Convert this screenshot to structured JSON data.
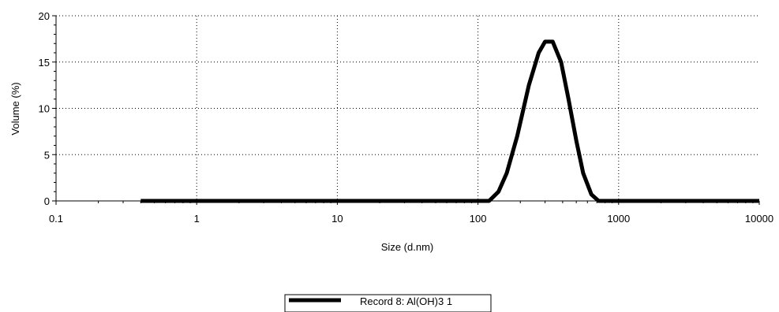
{
  "chart_data": {
    "type": "line",
    "xlabel": "Size (d.nm)",
    "ylabel": "Volume (%)",
    "xscale": "log",
    "xlim": [
      0.1,
      10000
    ],
    "ylim": [
      0,
      20
    ],
    "xticks": [
      0.1,
      1,
      10,
      100,
      1000,
      10000
    ],
    "xtick_labels": [
      "0.1",
      "1",
      "10",
      "100",
      "1000",
      "10000"
    ],
    "yticks": [
      0,
      5,
      10,
      15,
      20
    ],
    "ytick_labels": [
      "0",
      "5",
      "10",
      "15",
      "20"
    ],
    "grid": true,
    "legend_position": "bottom-center",
    "series": [
      {
        "name": "Record 8: Al(OH)3 1",
        "color": "#000000",
        "x": [
          0.4,
          100,
          120,
          140,
          160,
          190,
          230,
          270,
          300,
          340,
          390,
          440,
          500,
          560,
          640,
          720,
          1000,
          10000
        ],
        "y": [
          0,
          0,
          0,
          1,
          3,
          7,
          12.5,
          16,
          17.2,
          17.2,
          15,
          11,
          6.5,
          3,
          0.7,
          0,
          0,
          0
        ]
      }
    ]
  }
}
